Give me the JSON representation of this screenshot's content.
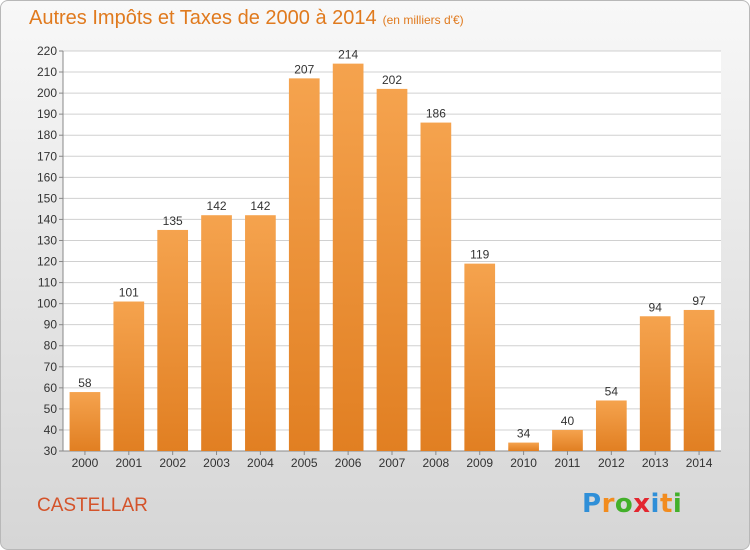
{
  "header": {
    "title": "Autres Impôts et Taxes de 2000 à 2014",
    "unit": "(en milliers d'€)"
  },
  "footer": {
    "commune": "CASTELLAR",
    "logo_letters": [
      "P",
      "r",
      "o",
      "x",
      "i",
      "t",
      "i"
    ],
    "logo_colors": [
      "#2f8fd8",
      "#f28c1e",
      "#43b02a",
      "#e3262f",
      "#2f8fd8",
      "#f28c1e",
      "#43b02a"
    ]
  },
  "colors": {
    "bar_light": "#f5a34e",
    "bar_dark": "#e17f22",
    "grid": "#d0d0d0",
    "axis_text": "#333333"
  },
  "chart_data": {
    "type": "bar",
    "categories": [
      "2000",
      "2001",
      "2002",
      "2003",
      "2004",
      "2005",
      "2006",
      "2007",
      "2008",
      "2009",
      "2010",
      "2011",
      "2012",
      "2013",
      "2014"
    ],
    "values": [
      58,
      101,
      135,
      142,
      142,
      207,
      214,
      202,
      186,
      119,
      34,
      40,
      54,
      94,
      97
    ],
    "ylim": [
      30,
      220
    ],
    "yticks": [
      30,
      40,
      50,
      60,
      70,
      80,
      90,
      100,
      110,
      120,
      130,
      140,
      150,
      160,
      170,
      180,
      190,
      200,
      210,
      220
    ],
    "grid": true,
    "xlabel": "",
    "ylabel": ""
  }
}
